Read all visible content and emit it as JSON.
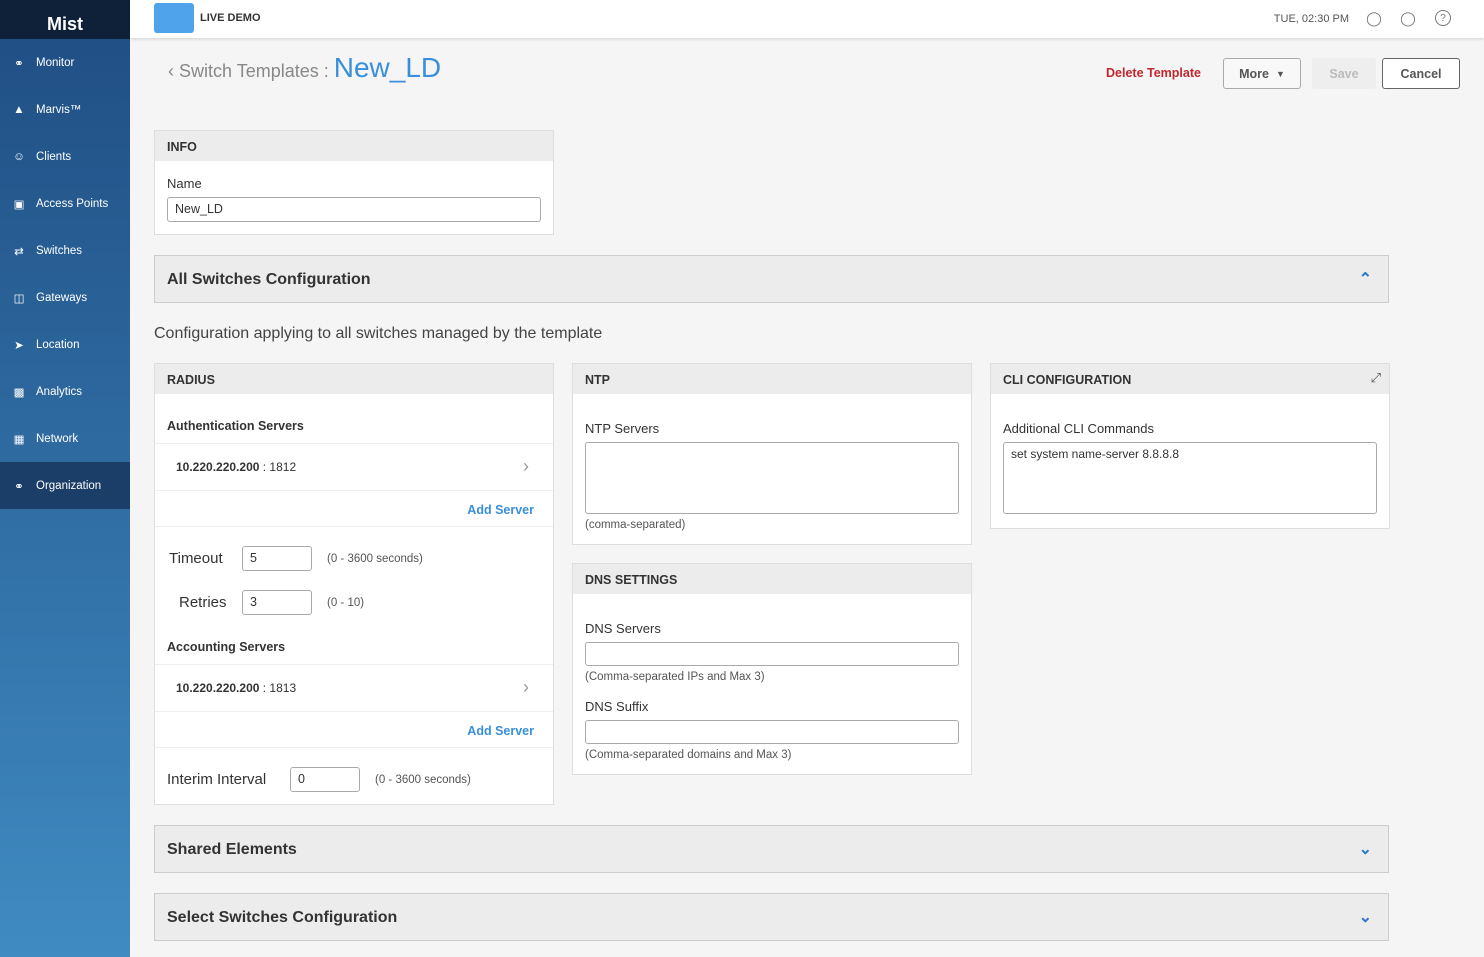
{
  "sidebar": {
    "logo": "Mist",
    "items": [
      {
        "label": "Monitor",
        "icon": "pulse-icon"
      },
      {
        "label": "Marvis™",
        "icon": "marvis-icon"
      },
      {
        "label": "Clients",
        "icon": "clients-icon"
      },
      {
        "label": "Access Points",
        "icon": "access-point-icon"
      },
      {
        "label": "Switches",
        "icon": "switch-icon"
      },
      {
        "label": "Gateways",
        "icon": "gateway-icon"
      },
      {
        "label": "Location",
        "icon": "location-icon"
      },
      {
        "label": "Analytics",
        "icon": "analytics-icon"
      },
      {
        "label": "Network",
        "icon": "network-icon"
      },
      {
        "label": "Organization",
        "icon": "globe-icon",
        "active": true
      }
    ]
  },
  "topbar": {
    "demo": "LIVE DEMO",
    "time": "TUE, 02:30 PM"
  },
  "header": {
    "breadcrumb": "Switch Templates :",
    "title": "New_LD",
    "delete": "Delete Template",
    "more": "More",
    "save": "Save",
    "cancel": "Cancel"
  },
  "info": {
    "title": "INFO",
    "name_label": "Name",
    "name_value": "New_LD"
  },
  "all_switches": {
    "title": "All Switches Configuration",
    "description": "Configuration applying to all switches managed by the template"
  },
  "radius": {
    "title": "RADIUS",
    "auth_label": "Authentication Servers",
    "auth_server": "10.220.220.200",
    "auth_port": ": 1812",
    "add_server": "Add Server",
    "timeout_label": "Timeout",
    "timeout": "5",
    "timeout_hint": "(0 - 3600 seconds)",
    "retries_label": "Retries",
    "retries": "3",
    "retries_hint": "(0 - 10)",
    "acct_label": "Accounting Servers",
    "acct_server": "10.220.220.200",
    "acct_port": ": 1813",
    "interim_label": "Interim Interval",
    "interim": "0",
    "interim_hint": "(0 - 3600 seconds)"
  },
  "ntp": {
    "title": "NTP",
    "label": "NTP Servers",
    "value": "",
    "hint": "(comma-separated)"
  },
  "dns": {
    "title": "DNS SETTINGS",
    "servers_label": "DNS Servers",
    "servers_hint": "(Comma-separated IPs and Max 3)",
    "suffix_label": "DNS Suffix",
    "suffix_hint": "(Comma-separated domains and Max 3)"
  },
  "cli": {
    "title": "CLI CONFIGURATION",
    "label": "Additional CLI Commands",
    "value": "set system name-server 8.8.8.8"
  },
  "sections": {
    "shared": "Shared Elements",
    "select": "Select Switches Configuration"
  }
}
